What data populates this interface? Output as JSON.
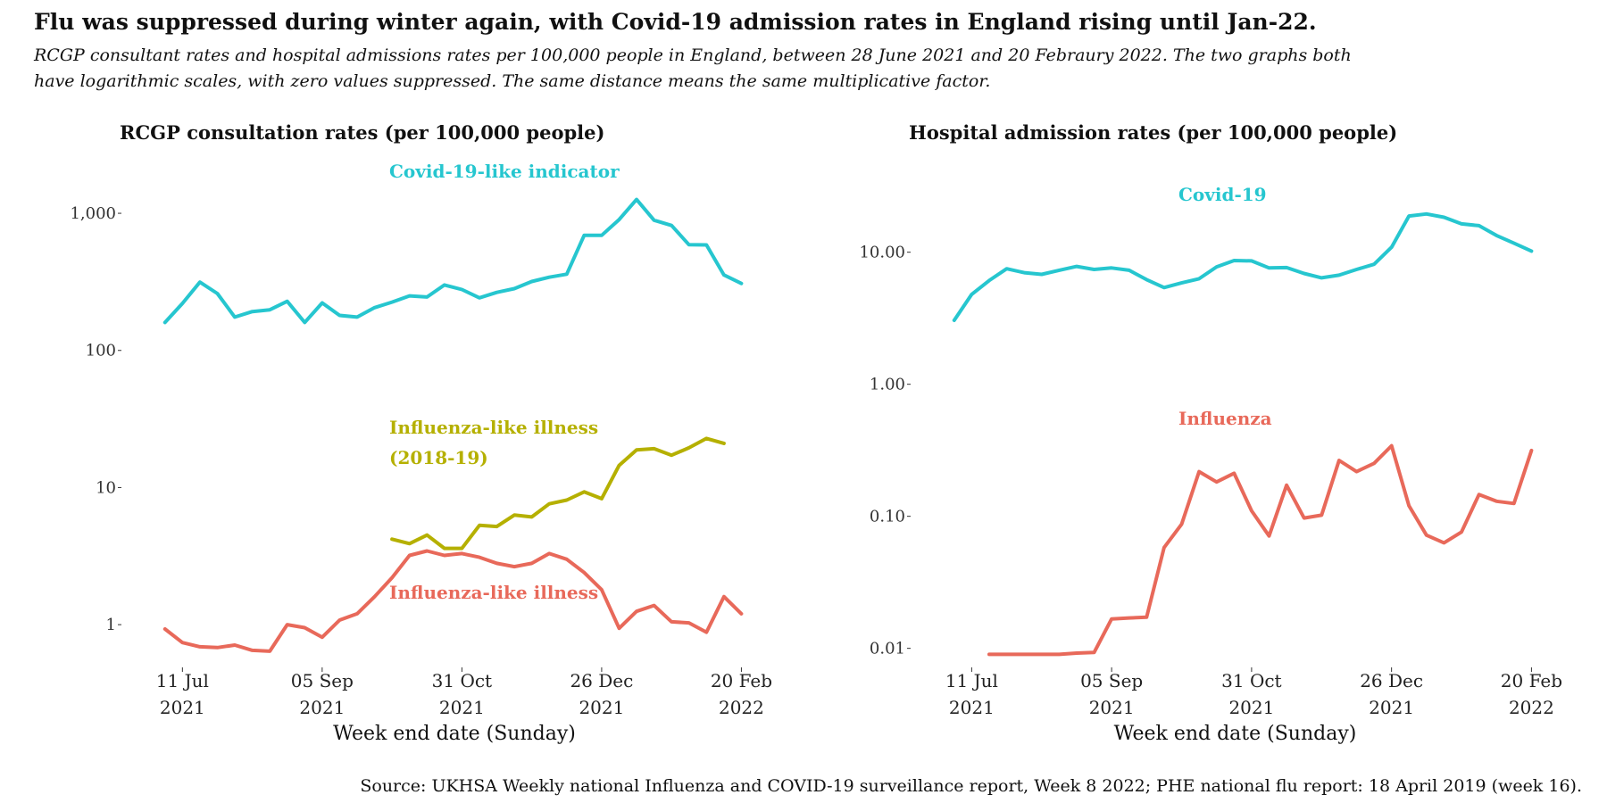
{
  "title": "Flu was suppressed during winter again, with Covid-19 admission rates in England rising until Jan-22.",
  "subtitle": "RCGP consultant rates and hospital admissions rates per 100,000 people in England, between 28 June 2021 and 20 Febraury 2022. The two graphs both have logarithmic scales, with zero values suppressed. The same distance means the same multiplicative factor.",
  "source": "Source: UKHSA Weekly national Influenza and COVID-19 surveillance report, Week 8 2022; PHE national flu report: 18 April 2019 (week 16).",
  "colors": {
    "covid": "#26C6CF",
    "influenza": "#E8695A",
    "flu_2018": "#B5B000",
    "text": "#111111"
  },
  "chart_data": [
    {
      "type": "line",
      "title": "RCGP consultation rates (per 100,000 people)",
      "xlabel": "Week end date (Sunday)",
      "ylabel": "",
      "y_scale": "log",
      "ylim": [
        0.8,
        1500
      ],
      "y_ticks": [
        1,
        10,
        100,
        1000
      ],
      "y_tick_labels": [
        "1",
        "10",
        "100",
        "1,000"
      ],
      "x_ticks": [
        "2021-07-11",
        "2021-09-05",
        "2021-10-31",
        "2021-12-26",
        "2022-02-20"
      ],
      "x_tick_labels": [
        [
          "11 Jul",
          "2021"
        ],
        [
          "05 Sep",
          "2021"
        ],
        [
          "31 Oct",
          "2021"
        ],
        [
          "26 Dec",
          "2021"
        ],
        [
          "20 Feb",
          "2022"
        ]
      ],
      "x_range": [
        "2021-06-28",
        "2022-02-27"
      ],
      "series": [
        {
          "name": "Covid-19-like indicator",
          "color_key": "covid",
          "label_pos": "upper-middle",
          "points": [
            [
              "2021-07-04",
              160
            ],
            [
              "2021-07-11",
              220
            ],
            [
              "2021-07-18",
              315
            ],
            [
              "2021-07-25",
              260
            ],
            [
              "2021-08-01",
              175
            ],
            [
              "2021-08-08",
              192
            ],
            [
              "2021-08-15",
              198
            ],
            [
              "2021-08-22",
              228
            ],
            [
              "2021-08-29",
              160
            ],
            [
              "2021-09-05",
              222
            ],
            [
              "2021-09-12",
              180
            ],
            [
              "2021-09-19",
              175
            ],
            [
              "2021-09-26",
              205
            ],
            [
              "2021-10-03",
              225
            ],
            [
              "2021-10-10",
              250
            ],
            [
              "2021-10-17",
              245
            ],
            [
              "2021-10-24",
              300
            ],
            [
              "2021-10-31",
              278
            ],
            [
              "2021-11-07",
              242
            ],
            [
              "2021-11-14",
              265
            ],
            [
              "2021-11-21",
              282
            ],
            [
              "2021-11-28",
              318
            ],
            [
              "2021-12-05",
              342
            ],
            [
              "2021-12-12",
              360
            ],
            [
              "2021-12-19",
              690
            ],
            [
              "2021-12-26",
              690
            ],
            [
              "2022-01-02",
              900
            ],
            [
              "2022-01-09",
              1260
            ],
            [
              "2022-01-16",
              890
            ],
            [
              "2022-01-23",
              815
            ],
            [
              "2022-01-30",
              590
            ],
            [
              "2022-02-06",
              588
            ],
            [
              "2022-02-13",
              355
            ],
            [
              "2022-02-20",
              308
            ]
          ]
        },
        {
          "name": "Influenza-like illness (2018-19)",
          "name_lines": [
            "Influenza-like illness",
            "(2018-19)"
          ],
          "color_key": "flu_2018",
          "points": [
            [
              "2021-10-03",
              4.2
            ],
            [
              "2021-10-10",
              3.9
            ],
            [
              "2021-10-17",
              4.5
            ],
            [
              "2021-10-24",
              3.6
            ],
            [
              "2021-10-31",
              3.6
            ],
            [
              "2021-11-07",
              5.3
            ],
            [
              "2021-11-14",
              5.2
            ],
            [
              "2021-11-21",
              6.3
            ],
            [
              "2021-11-28",
              6.1
            ],
            [
              "2021-12-05",
              7.6
            ],
            [
              "2021-12-12",
              8.1
            ],
            [
              "2021-12-19",
              9.3
            ],
            [
              "2021-12-26",
              8.3
            ],
            [
              "2022-01-02",
              14.5
            ],
            [
              "2022-01-09",
              18.8
            ],
            [
              "2022-01-16",
              19.2
            ],
            [
              "2022-01-23",
              17.2
            ],
            [
              "2022-01-30",
              19.5
            ],
            [
              "2022-02-06",
              22.8
            ],
            [
              "2022-02-13",
              21.0
            ]
          ]
        },
        {
          "name": "Influenza-like illness",
          "color_key": "influenza",
          "points": [
            [
              "2021-07-04",
              0.93
            ],
            [
              "2021-07-11",
              0.74
            ],
            [
              "2021-07-18",
              0.69
            ],
            [
              "2021-07-25",
              0.68
            ],
            [
              "2021-08-01",
              0.71
            ],
            [
              "2021-08-08",
              0.65
            ],
            [
              "2021-08-15",
              0.64
            ],
            [
              "2021-08-22",
              1.0
            ],
            [
              "2021-08-29",
              0.95
            ],
            [
              "2021-09-05",
              0.81
            ],
            [
              "2021-09-12",
              1.08
            ],
            [
              "2021-09-19",
              1.2
            ],
            [
              "2021-09-26",
              1.6
            ],
            [
              "2021-10-03",
              2.2
            ],
            [
              "2021-10-10",
              3.2
            ],
            [
              "2021-10-17",
              3.45
            ],
            [
              "2021-10-24",
              3.2
            ],
            [
              "2021-10-31",
              3.3
            ],
            [
              "2021-11-07",
              3.1
            ],
            [
              "2021-11-14",
              2.8
            ],
            [
              "2021-11-21",
              2.65
            ],
            [
              "2021-11-28",
              2.8
            ],
            [
              "2021-12-05",
              3.3
            ],
            [
              "2021-12-12",
              3.0
            ],
            [
              "2021-12-19",
              2.4
            ],
            [
              "2021-12-26",
              1.8
            ],
            [
              "2022-01-02",
              0.94
            ],
            [
              "2022-01-09",
              1.25
            ],
            [
              "2022-01-16",
              1.38
            ],
            [
              "2022-01-23",
              1.05
            ],
            [
              "2022-01-30",
              1.03
            ],
            [
              "2022-02-06",
              0.88
            ],
            [
              "2022-02-13",
              1.6
            ],
            [
              "2022-02-20",
              1.2
            ]
          ]
        }
      ]
    },
    {
      "type": "line",
      "title": "Hospital admission rates (per 100,000 people)",
      "xlabel": "Week end date (Sunday)",
      "ylabel": "",
      "y_scale": "log",
      "ylim": [
        0.008,
        22
      ],
      "y_ticks": [
        0.01,
        0.1,
        1,
        10
      ],
      "y_tick_labels": [
        "0.01",
        "0.10",
        "1.00",
        "10.00"
      ],
      "x_ticks": [
        "2021-07-11",
        "2021-09-05",
        "2021-10-31",
        "2021-12-26",
        "2022-02-20"
      ],
      "x_tick_labels": [
        [
          "11 Jul",
          "2021"
        ],
        [
          "05 Sep",
          "2021"
        ],
        [
          "31 Oct",
          "2021"
        ],
        [
          "26 Dec",
          "2021"
        ],
        [
          "20 Feb",
          "2022"
        ]
      ],
      "x_range": [
        "2021-06-28",
        "2022-02-27"
      ],
      "series": [
        {
          "name": "Covid-19",
          "color_key": "covid",
          "points": [
            [
              "2021-07-04",
              3.05
            ],
            [
              "2021-07-11",
              4.8
            ],
            [
              "2021-07-18",
              6.1
            ],
            [
              "2021-07-25",
              7.5
            ],
            [
              "2021-08-01",
              7.0
            ],
            [
              "2021-08-08",
              6.8
            ],
            [
              "2021-08-15",
              7.3
            ],
            [
              "2021-08-22",
              7.8
            ],
            [
              "2021-08-29",
              7.4
            ],
            [
              "2021-09-05",
              7.6
            ],
            [
              "2021-09-12",
              7.3
            ],
            [
              "2021-09-19",
              6.2
            ],
            [
              "2021-09-26",
              5.4
            ],
            [
              "2021-10-03",
              5.85
            ],
            [
              "2021-10-10",
              6.3
            ],
            [
              "2021-10-17",
              7.75
            ],
            [
              "2021-10-24",
              8.65
            ],
            [
              "2021-10-31",
              8.6
            ],
            [
              "2021-11-07",
              7.6
            ],
            [
              "2021-11-14",
              7.65
            ],
            [
              "2021-11-21",
              6.9
            ],
            [
              "2021-11-28",
              6.4
            ],
            [
              "2021-12-05",
              6.7
            ],
            [
              "2021-12-12",
              7.4
            ],
            [
              "2021-12-19",
              8.1
            ],
            [
              "2021-12-26",
              10.9
            ],
            [
              "2022-01-02",
              18.8
            ],
            [
              "2022-01-09",
              19.5
            ],
            [
              "2022-01-16",
              18.4
            ],
            [
              "2022-01-23",
              16.4
            ],
            [
              "2022-01-30",
              15.9
            ],
            [
              "2022-02-06",
              13.4
            ],
            [
              "2022-02-13",
              11.7
            ],
            [
              "2022-02-20",
              10.2
            ]
          ]
        },
        {
          "name": "Influenza",
          "color_key": "influenza",
          "points": [
            [
              "2021-07-18",
              0.009
            ],
            [
              "2021-07-25",
              0.009
            ],
            [
              "2021-08-01",
              0.009
            ],
            [
              "2021-08-08",
              0.009
            ],
            [
              "2021-08-15",
              0.009
            ],
            [
              "2021-08-22",
              0.0092
            ],
            [
              "2021-08-29",
              0.0093
            ],
            [
              "2021-09-05",
              0.0167
            ],
            [
              "2021-09-12",
              0.017
            ],
            [
              "2021-09-19",
              0.0172
            ],
            [
              "2021-09-26",
              0.058
            ],
            [
              "2021-10-03",
              0.087
            ],
            [
              "2021-10-10",
              0.218
            ],
            [
              "2021-10-17",
              0.182
            ],
            [
              "2021-10-24",
              0.212
            ],
            [
              "2021-10-31",
              0.11
            ],
            [
              "2021-11-07",
              0.071
            ],
            [
              "2021-11-14",
              0.172
            ],
            [
              "2021-11-21",
              0.097
            ],
            [
              "2021-11-28",
              0.102
            ],
            [
              "2021-12-05",
              0.265
            ],
            [
              "2021-12-12",
              0.218
            ],
            [
              "2021-12-19",
              0.252
            ],
            [
              "2021-12-26",
              0.342
            ],
            [
              "2022-01-02",
              0.12
            ],
            [
              "2022-01-09",
              0.072
            ],
            [
              "2022-01-16",
              0.063
            ],
            [
              "2022-01-23",
              0.076
            ],
            [
              "2022-01-30",
              0.146
            ],
            [
              "2022-02-06",
              0.13
            ],
            [
              "2022-02-13",
              0.125
            ],
            [
              "2022-02-20",
              0.315
            ]
          ]
        }
      ]
    }
  ]
}
